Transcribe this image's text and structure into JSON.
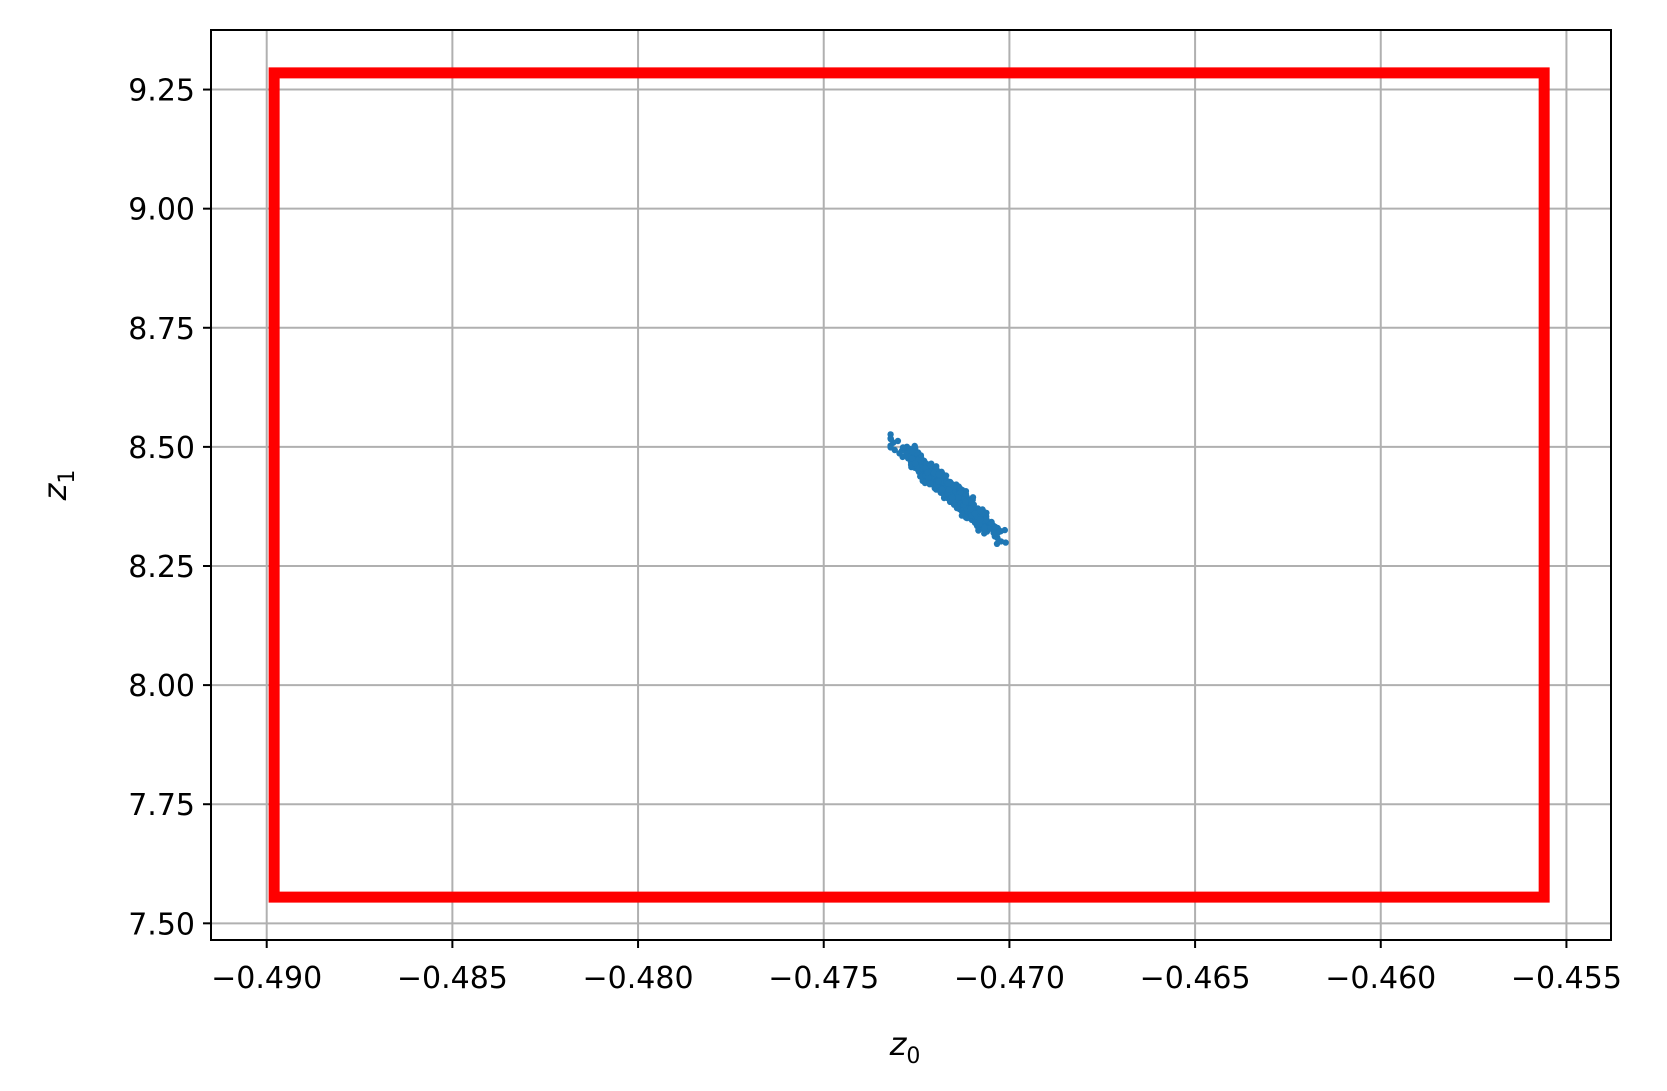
{
  "chart_data": {
    "type": "scatter",
    "title": "",
    "xlabel": "z",
    "xlabel_sub": "0",
    "ylabel": "z",
    "ylabel_sub": "1",
    "xlim": [
      -0.4915,
      -0.4538
    ],
    "ylim": [
      7.465,
      9.375
    ],
    "grid": true,
    "x_ticks": [
      -0.49,
      -0.485,
      -0.48,
      -0.475,
      -0.47,
      -0.465,
      -0.46,
      -0.455
    ],
    "x_tick_labels": [
      "−0.490",
      "−0.485",
      "−0.480",
      "−0.475",
      "−0.470",
      "−0.465",
      "−0.460",
      "−0.455"
    ],
    "y_ticks": [
      7.5,
      7.75,
      8.0,
      8.25,
      8.5,
      8.75,
      9.0,
      9.25
    ],
    "y_tick_labels": [
      "7.50",
      "7.75",
      "8.00",
      "8.25",
      "8.50",
      "8.75",
      "9.00",
      "9.25"
    ],
    "bounding_box": {
      "x_min": -0.4898,
      "x_max": -0.4556,
      "y_min": 7.555,
      "y_max": 9.285,
      "color": "#ff0000"
    },
    "scatter": {
      "color": "#1f77b4",
      "x_range": [
        -0.4733,
        -0.47
      ],
      "y_range": [
        8.29,
        8.53
      ],
      "line_start": [
        -0.4732,
        8.515
      ],
      "line_end": [
        -0.4701,
        8.305
      ],
      "count": 520,
      "spread": 0.012
    },
    "colors": {
      "grid": "#b0b0b0",
      "axes": "#000000",
      "box": "#ff0000",
      "points": "#1f77b4"
    }
  }
}
